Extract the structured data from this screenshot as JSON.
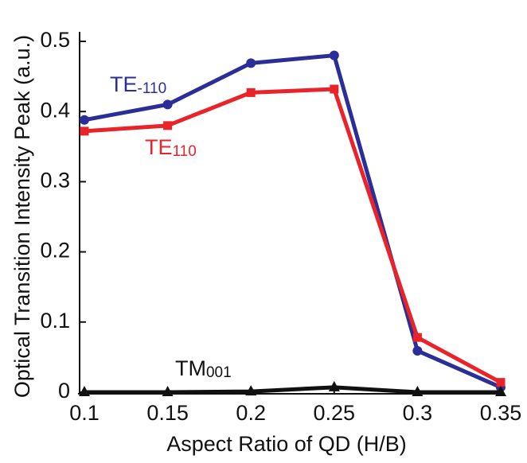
{
  "chart_data": {
    "type": "line",
    "x_label": "Aspect Ratio of QD (H/B)",
    "y_label": "Optical Transition Intensity Peak (a.u.)",
    "x": [
      0.1,
      0.15,
      0.2,
      0.25,
      0.3,
      0.35
    ],
    "series": [
      {
        "name": "TE-110",
        "color": "#2b2e96",
        "marker": "circle",
        "values": [
          0.388,
          0.41,
          0.469,
          0.48,
          0.059,
          0.007
        ]
      },
      {
        "name": "TE110",
        "color": "#e8232a",
        "marker": "square",
        "values": [
          0.372,
          0.38,
          0.427,
          0.432,
          0.078,
          0.014
        ]
      },
      {
        "name": "TM001",
        "color": "#111111",
        "marker": "triangle",
        "values": [
          0,
          0,
          0.001,
          0.007,
          0,
          0
        ]
      }
    ],
    "xlim": [
      0.1,
      0.35
    ],
    "xticks": [
      0.1,
      0.15,
      0.2,
      0.25,
      0.3,
      0.35
    ],
    "ylim": [
      0,
      0.5
    ],
    "yticks": [
      0,
      0.1,
      0.2,
      0.3,
      0.4,
      0.5
    ]
  }
}
